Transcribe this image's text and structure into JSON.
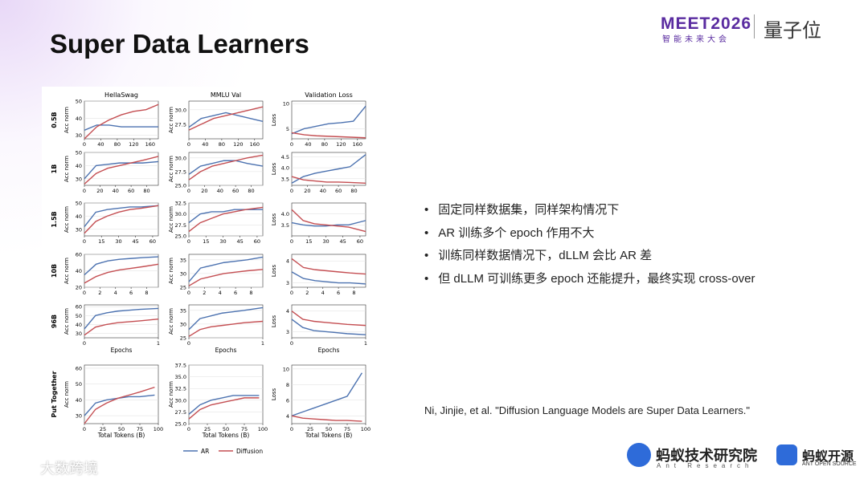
{
  "header": {
    "title": "Super Data Learners",
    "event_logo": "MEET2026",
    "event_sub": "智能未来大会",
    "brand": "量子位"
  },
  "bullets": [
    "固定同样数据集，同样架构情况下",
    "AR 训练多个 epoch 作用不大",
    "训练同样数据情况下，dLLM 会比 AR 差",
    "但 dLLM 可训练更多 epoch 还能提升，最终实现 cross-over"
  ],
  "citation": "Ni, Jinjie, et al. \"Diffusion Language Models are Super Data Learners.\"",
  "footer": {
    "lab": "蚂蚁技术研究院",
    "lab_en": "Ant Research",
    "open": "蚂蚁开源",
    "open_en": "ANT OPEN SOURCE",
    "watermark": "大数跨境"
  },
  "figure": {
    "columns": [
      "HellaSwag",
      "MMLU Val",
      "Validation Loss"
    ],
    "legend": [
      {
        "name": "AR",
        "color": "#4c72b0"
      },
      {
        "name": "Diffusion",
        "color": "#c44e52"
      }
    ],
    "rows": [
      {
        "label": "0.5B",
        "x": [
          0,
          30,
          60,
          90,
          120,
          150,
          180
        ],
        "xlim": [
          0,
          180
        ],
        "xticks": [
          0,
          40,
          80,
          120,
          160
        ],
        "panels": [
          {
            "ylabel": "Acc norm",
            "ylim": [
              28,
              50
            ],
            "yticks": [
              30,
              40,
              50
            ],
            "series": [
              {
                "values": [
                  33,
                  36,
                  36,
                  35,
                  35,
                  35,
                  35
                ]
              },
              {
                "values": [
                  28,
                  35,
                  39,
                  42,
                  44,
                  45,
                  48
                ]
              }
            ]
          },
          {
            "ylabel": "Acc norm",
            "ylim": [
              25,
              31.5
            ],
            "yticks": [
              27.5,
              {
                "value": 30,
                "label": "30.0"
              }
            ],
            "series": [
              {
                "values": [
                  27,
                  28.5,
                  29,
                  29.5,
                  29,
                  28.5,
                  28
                ]
              },
              {
                "values": [
                  26.5,
                  27.5,
                  28.5,
                  29,
                  29.5,
                  30,
                  30.5
                ]
              }
            ]
          },
          {
            "ylabel": "Loss",
            "ylim": [
              3,
              10.5
            ],
            "yticks": [
              5,
              10
            ],
            "series": [
              {
                "values": [
                  4,
                  5,
                  5.5,
                  6,
                  6.2,
                  6.5,
                  9.5
                ]
              },
              {
                "values": [
                  4.2,
                  3.8,
                  3.6,
                  3.5,
                  3.4,
                  3.3,
                  3.2
                ]
              }
            ]
          }
        ]
      },
      {
        "label": "1B",
        "x": [
          0,
          15,
          30,
          45,
          60,
          75,
          95
        ],
        "xlim": [
          0,
          95
        ],
        "xticks": [
          0,
          20,
          40,
          60,
          80
        ],
        "panels": [
          {
            "ylabel": "Acc norm",
            "ylim": [
              25,
              50
            ],
            "yticks": [
              30,
              40,
              50
            ],
            "series": [
              {
                "values": [
                  30,
                  40,
                  41,
                  42,
                  42,
                  42,
                  43
                ]
              },
              {
                "values": [
                  26,
                  34,
                  38,
                  40,
                  42,
                  44,
                  47
                ]
              }
            ]
          },
          {
            "ylabel": "Acc norm",
            "ylim": [
              25,
              31
            ],
            "yticks": [
              {
                "value": 25,
                "label": "25.0"
              },
              27.5,
              {
                "value": 30,
                "label": "30.0"
              }
            ],
            "series": [
              {
                "values": [
                  27,
                  28.5,
                  29,
                  29.5,
                  29.5,
                  29,
                  28.5
                ]
              },
              {
                "values": [
                  26,
                  27.5,
                  28.5,
                  29,
                  29.5,
                  30,
                  30.5
                ]
              }
            ]
          },
          {
            "ylabel": "Loss",
            "ylim": [
              3.2,
              4.7
            ],
            "yticks": [
              3.5,
              {
                "value": 4,
                "label": "4.0"
              },
              4.5
            ],
            "series": [
              {
                "values": [
                  3.3,
                  3.6,
                  3.75,
                  3.85,
                  3.95,
                  4.05,
                  4.6
                ]
              },
              {
                "values": [
                  3.6,
                  3.45,
                  3.4,
                  3.35,
                  3.35,
                  3.33,
                  3.3
                ]
              }
            ]
          }
        ]
      },
      {
        "label": "1.5B",
        "x": [
          0,
          10,
          20,
          30,
          40,
          50,
          65
        ],
        "xlim": [
          0,
          65
        ],
        "xticks": [
          0,
          15,
          30,
          45,
          60
        ],
        "panels": [
          {
            "ylabel": "Acc norm",
            "ylim": [
              25,
              50
            ],
            "yticks": [
              30,
              40,
              50
            ],
            "series": [
              {
                "values": [
                  32,
                  43,
                  45,
                  46,
                  47,
                  47,
                  48
                ]
              },
              {
                "values": [
                  27,
                  36,
                  40,
                  43,
                  45,
                  46,
                  48
                ]
              }
            ]
          },
          {
            "ylabel": "Acc norm",
            "ylim": [
              25,
              32.5
            ],
            "yticks": [
              {
                "value": 25,
                "label": "25.0"
              },
              27.5,
              {
                "value": 30,
                "label": "30.0"
              },
              32.5
            ],
            "series": [
              {
                "values": [
                  28,
                  30,
                  30.5,
                  30.5,
                  31,
                  31,
                  31
                ]
              },
              {
                "values": [
                  26,
                  28,
                  29,
                  30,
                  30.5,
                  31,
                  31.5
                ]
              }
            ]
          },
          {
            "ylabel": "Loss",
            "ylim": [
              3,
              4.5
            ],
            "yticks": [
              3.5,
              {
                "value": 4,
                "label": "4.0"
              }
            ],
            "series": [
              {
                "values": [
                  3.6,
                  3.5,
                  3.45,
                  3.45,
                  3.5,
                  3.5,
                  3.7
                ]
              },
              {
                "values": [
                  4.2,
                  3.7,
                  3.55,
                  3.5,
                  3.45,
                  3.4,
                  3.2
                ]
              }
            ]
          }
        ]
      },
      {
        "label": "10B",
        "x": [
          0,
          1.5,
          3,
          4.5,
          6,
          7.5,
          9.5
        ],
        "xlim": [
          0,
          9.5
        ],
        "xticks": [
          0,
          2,
          4,
          6,
          8
        ],
        "panels": [
          {
            "ylabel": "Acc norm",
            "ylim": [
              20,
              60
            ],
            "yticks": [
              20,
              40,
              60
            ],
            "series": [
              {
                "values": [
                  35,
                  48,
                  52,
                  54,
                  55,
                  56,
                  57
                ]
              },
              {
                "values": [
                  25,
                  33,
                  38,
                  41,
                  43,
                  45,
                  48
                ]
              }
            ]
          },
          {
            "ylabel": "Acc norm",
            "ylim": [
              25,
              37
            ],
            "yticks": [
              25,
              30,
              35
            ],
            "series": [
              {
                "values": [
                  27,
                  32,
                  33,
                  34,
                  34.5,
                  35,
                  36
                ]
              },
              {
                "values": [
                  25.5,
                  28,
                  29,
                  30,
                  30.5,
                  31,
                  31.5
                ]
              }
            ]
          },
          {
            "ylabel": "Loss",
            "ylim": [
              2.8,
              4.3
            ],
            "yticks": [
              3,
              4
            ],
            "series": [
              {
                "values": [
                  3.5,
                  3.2,
                  3.1,
                  3.05,
                  3,
                  3,
                  2.95
                ]
              },
              {
                "values": [
                  4.1,
                  3.7,
                  3.6,
                  3.55,
                  3.5,
                  3.45,
                  3.4
                ]
              }
            ]
          }
        ]
      },
      {
        "label": "96B",
        "x": [
          0,
          0.15,
          0.3,
          0.45,
          0.6,
          0.75,
          1
        ],
        "xlim": [
          0,
          1
        ],
        "xticks": [
          0,
          1
        ],
        "xlabel": "Epochs",
        "panels": [
          {
            "ylabel": "Acc norm",
            "ylim": [
              25,
              62
            ],
            "yticks": [
              30,
              40,
              50,
              60
            ],
            "series": [
              {
                "values": [
                  35,
                  50,
                  53,
                  55,
                  56,
                  57,
                  58
                ]
              },
              {
                "values": [
                  28,
                  37,
                  40,
                  42,
                  43,
                  44,
                  46
                ]
              }
            ]
          },
          {
            "ylabel": "Acc norm",
            "ylim": [
              25,
              37
            ],
            "yticks": [
              25,
              30,
              35
            ],
            "series": [
              {
                "values": [
                  28,
                  32,
                  33,
                  34,
                  34.5,
                  35,
                  36
                ]
              },
              {
                "values": [
                  25.5,
                  28,
                  29,
                  29.5,
                  30,
                  30.5,
                  31
                ]
              }
            ]
          },
          {
            "ylabel": "Loss",
            "ylim": [
              2.7,
              4.3
            ],
            "yticks": [
              3,
              4
            ],
            "series": [
              {
                "values": [
                  3.6,
                  3.2,
                  3.05,
                  3,
                  2.95,
                  2.9,
                  2.85
                ]
              },
              {
                "values": [
                  4,
                  3.6,
                  3.5,
                  3.45,
                  3.4,
                  3.35,
                  3.3
                ]
              }
            ]
          }
        ]
      },
      {
        "label": "Put Together",
        "x": [
          0,
          15,
          30,
          45,
          60,
          75,
          95
        ],
        "xlim": [
          0,
          100
        ],
        "xticks": [
          0,
          25,
          50,
          75,
          100
        ],
        "xlabel": "Total Tokens (B)",
        "panels": [
          {
            "ylabel": "Acc norm",
            "ylim": [
              25,
              62
            ],
            "yticks": [
              30,
              40,
              50,
              60
            ],
            "series": [
              {
                "values": [
                  30,
                  38,
                  40,
                  41,
                  42,
                  42,
                  43
                ]
              },
              {
                "values": [
                  25,
                  34,
                  38,
                  41,
                  43,
                  45,
                  48
                ]
              }
            ]
          },
          {
            "ylabel": "Acc norm",
            "ylim": [
              25,
              37.5
            ],
            "yticks": [
              {
                "value": 25,
                "label": "25.0"
              },
              27.5,
              {
                "value": 30,
                "label": "30.0"
              },
              32.5,
              {
                "value": 35,
                "label": "35.0"
              },
              37.5
            ],
            "series": [
              {
                "values": [
                  27,
                  29,
                  30,
                  30.5,
                  31,
                  31,
                  31
                ]
              },
              {
                "values": [
                  26,
                  28,
                  29,
                  29.5,
                  30,
                  30.5,
                  30.5
                ]
              }
            ]
          },
          {
            "ylabel": "Loss",
            "ylim": [
              3,
              10.5
            ],
            "yticks": [
              4,
              6,
              8,
              10
            ],
            "series": [
              {
                "values": [
                  4,
                  4.5,
                  5,
                  5.5,
                  6,
                  6.5,
                  9.5
                ]
              },
              {
                "values": [
                  4,
                  3.7,
                  3.6,
                  3.5,
                  3.4,
                  3.4,
                  3.3
                ]
              }
            ]
          }
        ]
      }
    ]
  }
}
